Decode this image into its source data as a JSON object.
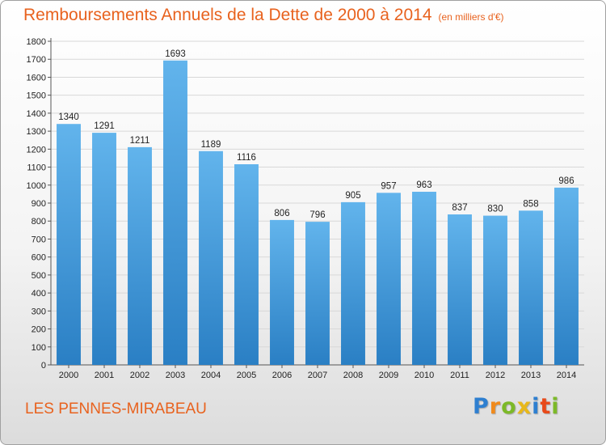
{
  "chart_data": {
    "type": "bar",
    "title": "Remboursements Annuels de la Dette de 2000 à 2014",
    "unit_note": "(en milliers d'€)",
    "categories": [
      "2000",
      "2001",
      "2002",
      "2003",
      "2004",
      "2005",
      "2006",
      "2007",
      "2008",
      "2009",
      "2010",
      "2011",
      "2012",
      "2013",
      "2014"
    ],
    "values": [
      1340,
      1291,
      1211,
      1693,
      1189,
      1116,
      806,
      796,
      905,
      957,
      963,
      837,
      830,
      858,
      986
    ],
    "ylim": [
      0,
      1800
    ],
    "ytick_step": 100,
    "grid": true,
    "xlabel": "",
    "ylabel": "",
    "bar_color_light": "#62b4ec",
    "bar_color_dark": "#2a7fc4"
  },
  "footer": {
    "commune": "LES PENNES-MIRABEAU",
    "logo_letters": [
      {
        "ch": "P",
        "color": "#2e7fd0"
      },
      {
        "ch": "r",
        "color": "#f08a1c"
      },
      {
        "ch": "o",
        "color": "#7cb928"
      },
      {
        "ch": "x",
        "color": "#e8b81a"
      },
      {
        "ch": "i",
        "color": "#2e7fd0"
      },
      {
        "ch": "t",
        "color": "#e84a1a"
      },
      {
        "ch": "i",
        "color": "#7cb928"
      }
    ]
  },
  "colors": {
    "accent": "#e8621e",
    "grid": "#d8d8d8"
  }
}
